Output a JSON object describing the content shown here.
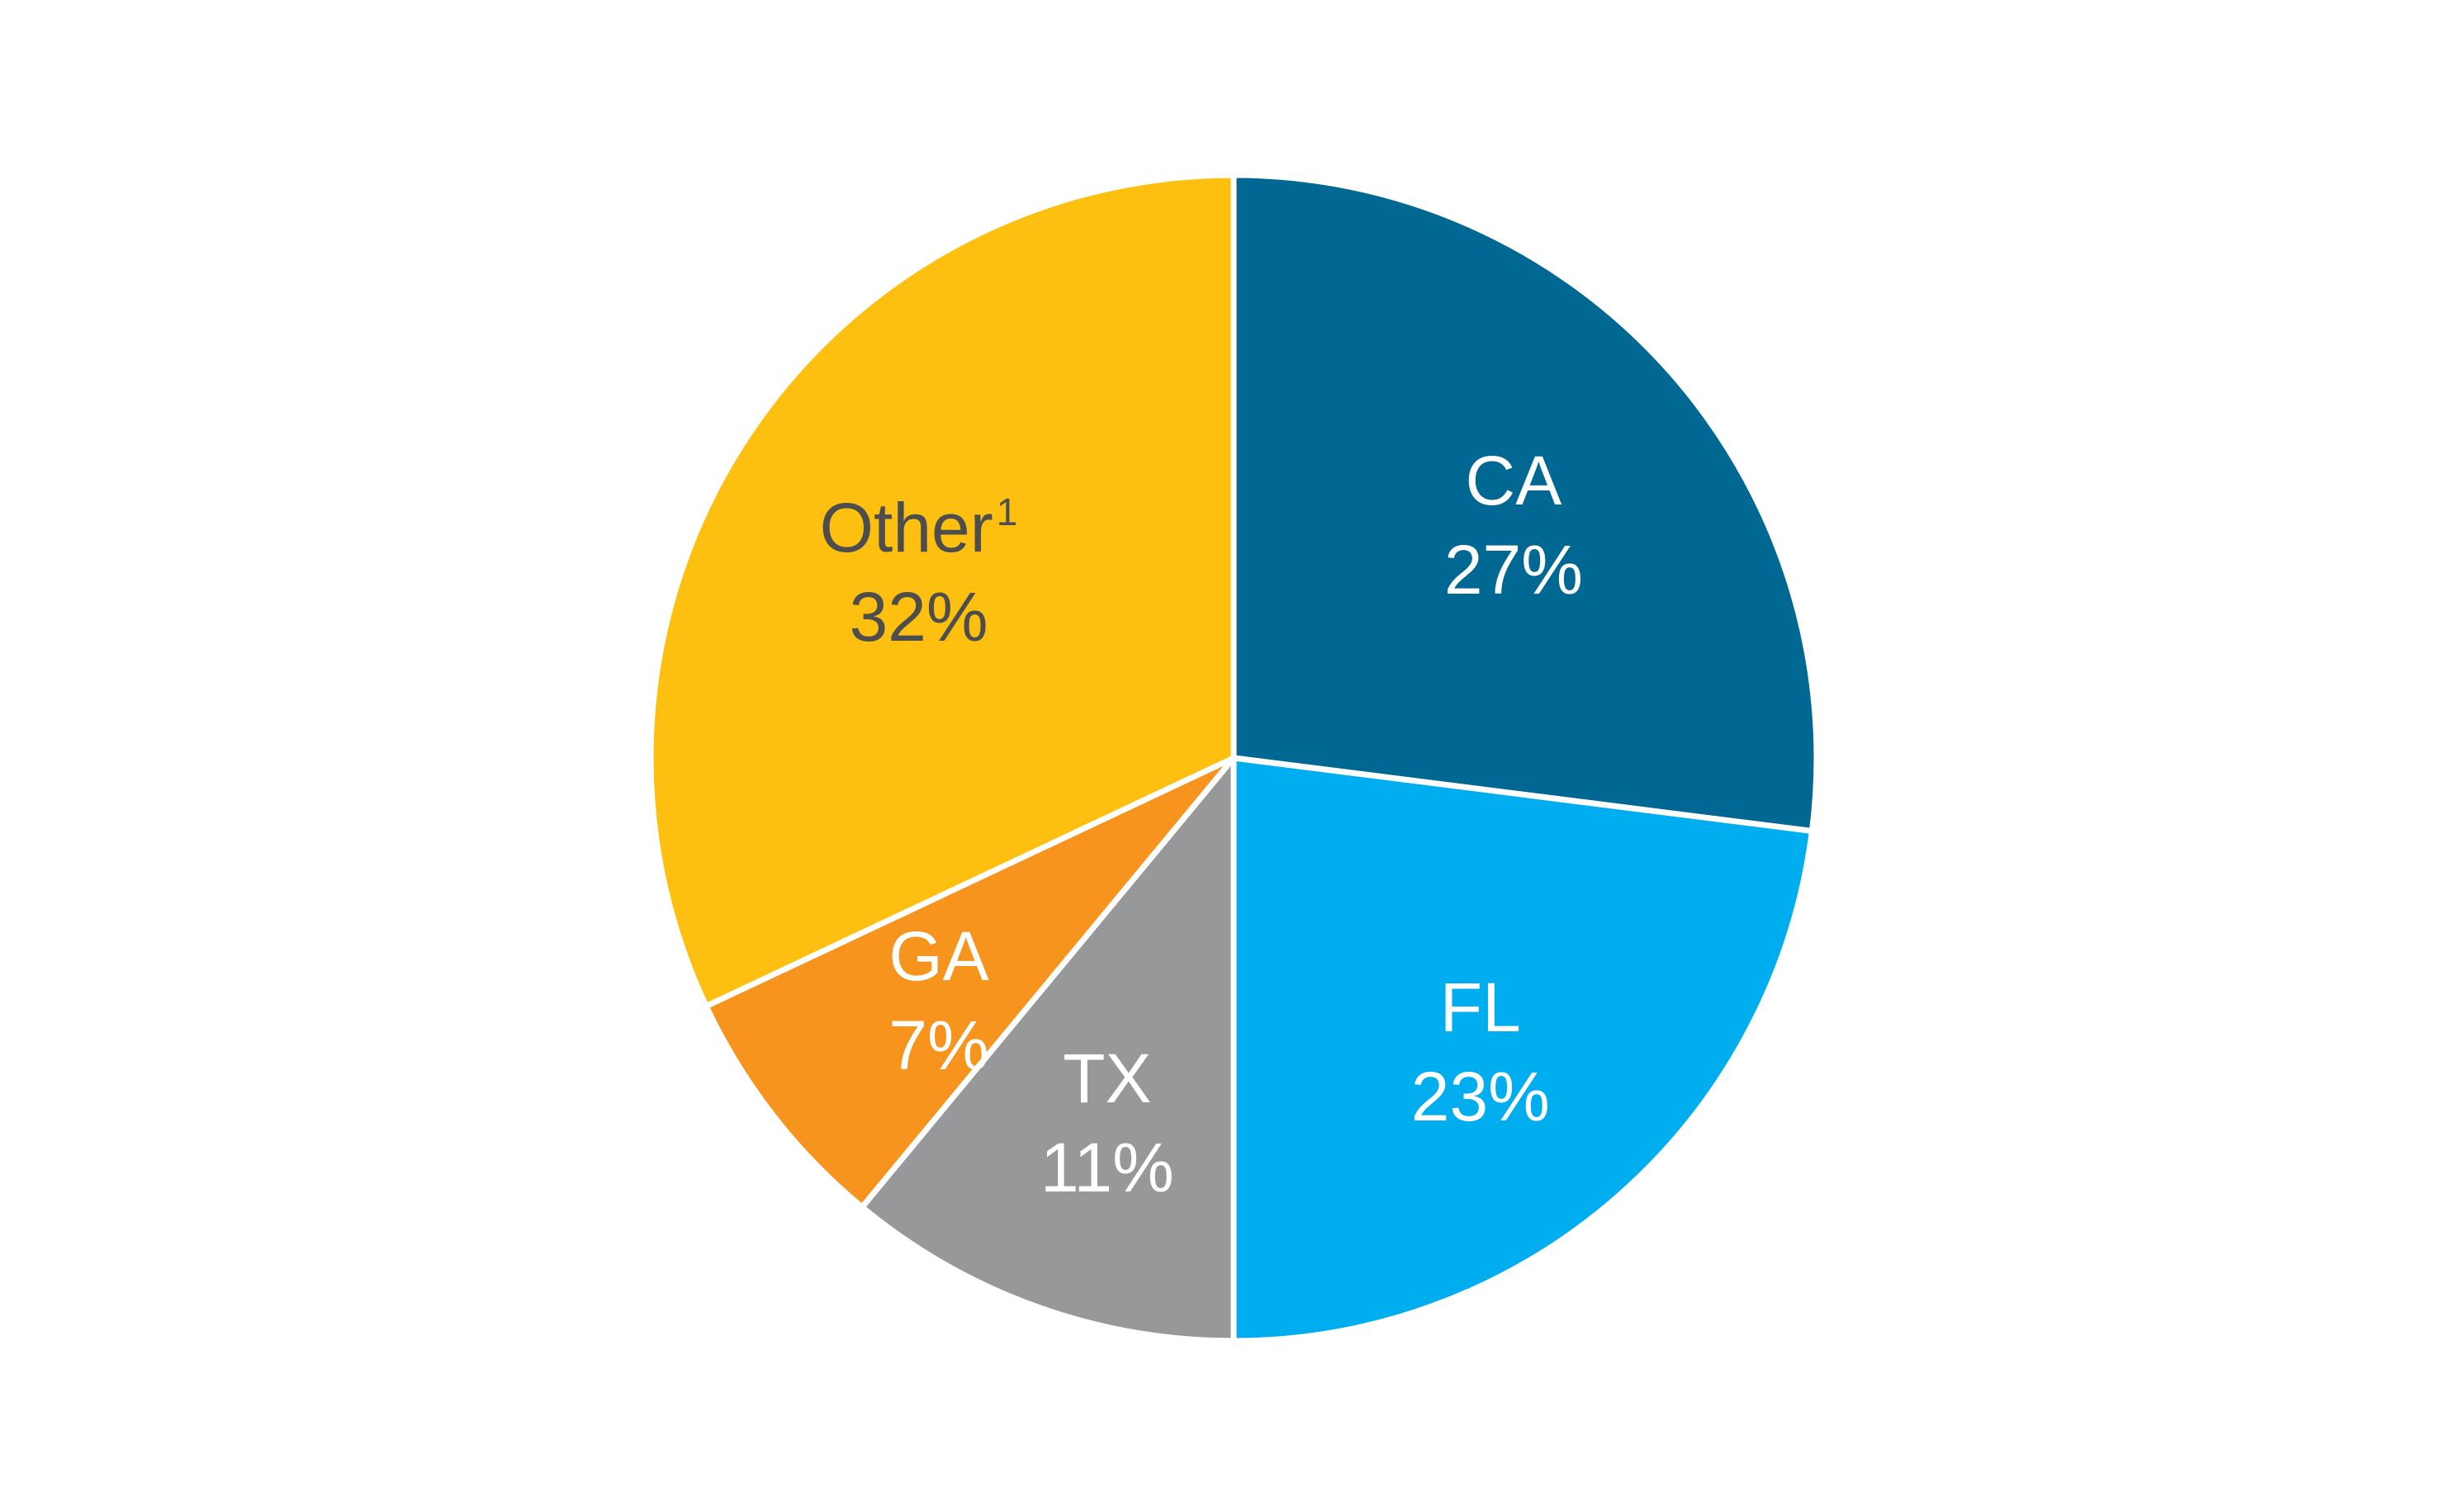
{
  "chart_data": {
    "type": "pie",
    "title": "",
    "start_angle_deg": 0,
    "direction": "clockwise",
    "slices": [
      {
        "label": "CA",
        "percent_label": "27%",
        "value": 27,
        "color": "#006892",
        "label_color": "#ffffff",
        "superscript": ""
      },
      {
        "label": "FL",
        "percent_label": "23%",
        "value": 23,
        "color": "#00AEEF",
        "label_color": "#ffffff",
        "superscript": ""
      },
      {
        "label": "TX",
        "percent_label": "11%",
        "value": 11,
        "color": "#97989A",
        "label_color": "#ffffff",
        "superscript": ""
      },
      {
        "label": "GA",
        "percent_label": "7%",
        "value": 7,
        "color": "#F7941E",
        "label_color": "#ffffff",
        "superscript": ""
      },
      {
        "label": "Other",
        "percent_label": "32%",
        "value": 32,
        "color": "#FDC010",
        "label_color": "#4D4D4D",
        "superscript": "1"
      }
    ]
  }
}
